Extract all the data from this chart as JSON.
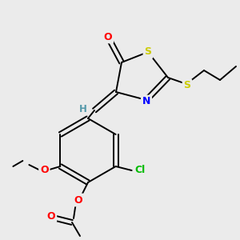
{
  "background_color": "#ebebeb",
  "bond_color": "#000000",
  "atom_colors": {
    "O": "#ff0000",
    "N": "#0000ff",
    "S": "#cccc00",
    "Cl": "#00bb00",
    "H": "#5599aa",
    "C": "#000000"
  },
  "figsize": [
    3.0,
    3.0
  ],
  "dpi": 100
}
